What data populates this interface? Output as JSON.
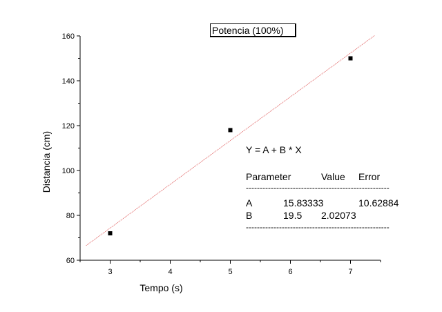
{
  "chart_data": {
    "type": "scatter",
    "xlabel": "Tempo (s)",
    "ylabel": "Distancia (cm)",
    "xlim": [
      2.5,
      7.5
    ],
    "ylim": [
      60,
      160
    ],
    "x_ticks": [
      3,
      4,
      5,
      6,
      7
    ],
    "y_ticks": [
      60,
      80,
      100,
      120,
      140,
      160
    ],
    "grid": false,
    "legend_position": "top-center",
    "series": [
      {
        "name": "Potencia (100%)",
        "x": [
          3,
          5,
          7
        ],
        "y": [
          72,
          118,
          150
        ],
        "color": "#000000",
        "marker": "square"
      }
    ],
    "fit_line": {
      "intercept": 15.83333,
      "slope": 19.5,
      "x_range": [
        2.6,
        7.4
      ],
      "color": "#e06060",
      "style": "dotted"
    },
    "fit_text": {
      "equation": "Y = A + B * X",
      "header_parameter": "Parameter",
      "header_value": "Value",
      "header_error": "Error",
      "separator": "----------------------------------------------------",
      "rows": [
        {
          "name": "A",
          "value": "15.83333",
          "error": "10.62884"
        },
        {
          "name": "B",
          "value": "19.5",
          "error": "2.02073"
        }
      ]
    }
  }
}
